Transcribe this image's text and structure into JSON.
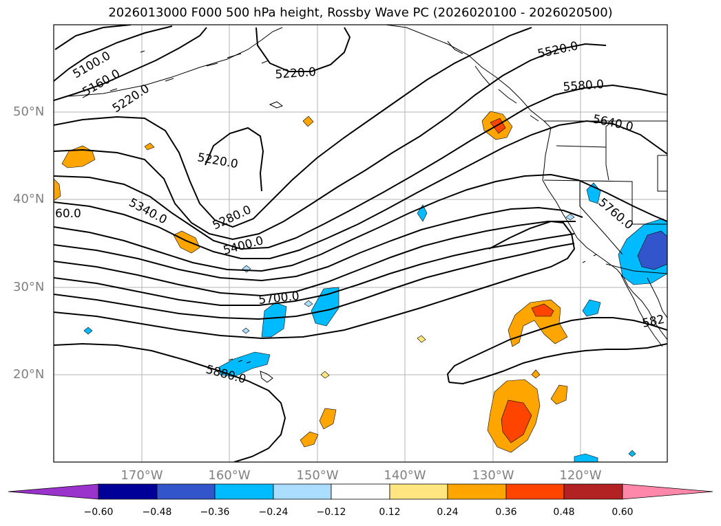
{
  "title": "2026013000 F000 500 hPa height, Rossby Wave PC (2026020100 - 2026020500)",
  "lat_labels": [
    "50°N",
    "40°N",
    "30°N",
    "20°N"
  ],
  "lon_labels": [
    "170°W",
    "160°W",
    "150°W",
    "140°W",
    "130°W",
    "120°W"
  ],
  "contour_labels": [
    "5100.0",
    "5160.0",
    "5220.0",
    "5220.0",
    "5220.0",
    "5520.0",
    "5580.0",
    "5640.0",
    "5340.0",
    "5280.0",
    "5400.0",
    "5760.0",
    "5700.0",
    "5880.0",
    "60.0",
    "582"
  ],
  "colorbar": {
    "ticks": [
      "−0.60",
      "−0.48",
      "−0.36",
      "−0.24",
      "−0.12",
      "0.12",
      "0.24",
      "0.36",
      "0.48",
      "0.60"
    ],
    "colors": [
      "#9933cc",
      "#000099",
      "#3355cc",
      "#00bbff",
      "#aaddff",
      "#ffffff",
      "#ffe680",
      "#ffa500",
      "#ff4400",
      "#b22222",
      "#ff88aa"
    ]
  }
}
